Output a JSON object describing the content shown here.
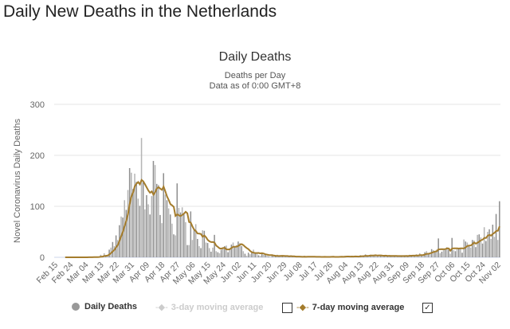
{
  "page_title": "Daily New Deaths in the Netherlands",
  "chart_data": {
    "type": "bar",
    "title": "Daily Deaths",
    "subtitle": [
      "Deaths per Day",
      "Data as of 0:00 GMT+8"
    ],
    "ylabel": "Novel Coronavirus Daily Deaths",
    "xlabel": "",
    "ylim": [
      0,
      300
    ],
    "yticks": [
      0,
      100,
      200,
      300
    ],
    "grid": true,
    "legend_position": "bottom",
    "start_date": "Feb 15",
    "xtick_labels": [
      "Feb 15",
      "Feb 24",
      "Mar 04",
      "Mar 13",
      "Mar 22",
      "Mar 31",
      "Apr 09",
      "Apr 18",
      "Apr 27",
      "May 06",
      "May 15",
      "May 24",
      "Jun 02",
      "Jun 11",
      "Jun 20",
      "Jun 29",
      "Jul 08",
      "Jul 17",
      "Jul 26",
      "Aug 04",
      "Aug 13",
      "Aug 22",
      "Aug 31",
      "Sep 09",
      "Sep 18",
      "Sep 27",
      "Oct 06",
      "Oct 15",
      "Oct 24",
      "Nov 02"
    ],
    "series": [
      {
        "name": "Daily Deaths",
        "color": "#999999",
        "values": [
          0,
          0,
          0,
          0,
          0,
          0,
          0,
          0,
          0,
          0,
          0,
          0,
          0,
          0,
          0,
          0,
          0,
          0,
          0,
          0,
          1,
          0,
          0,
          1,
          1,
          0,
          1,
          5,
          2,
          8,
          4,
          4,
          15,
          19,
          30,
          22,
          43,
          34,
          63,
          80,
          78,
          112,
          93,
          132,
          175,
          166,
          134,
          164,
          148,
          115,
          101,
          234,
          147,
          94,
          122,
          104,
          84,
          120,
          189,
          181,
          144,
          142,
          83,
          67,
          165,
          123,
          112,
          96,
          84,
          66,
          45,
          43,
          145,
          97,
          88,
          98,
          84,
          69,
          24,
          24,
          90,
          34,
          54,
          65,
          36,
          22,
          18,
          53,
          52,
          29,
          28,
          18,
          11,
          19,
          44,
          12,
          10,
          8,
          15,
          19,
          22,
          23,
          10,
          15,
          25,
          29,
          21,
          24,
          31,
          28,
          22,
          12,
          7,
          3,
          9,
          6,
          11,
          15,
          8,
          7,
          4,
          3,
          9,
          5,
          6,
          3,
          2,
          1,
          4,
          3,
          2,
          5,
          1,
          4,
          2,
          3,
          1,
          2,
          1,
          3,
          2,
          1,
          0,
          1,
          2,
          0,
          1,
          3,
          0,
          1,
          2,
          1,
          0,
          2,
          1,
          0,
          1,
          0,
          2,
          1,
          1,
          0,
          1,
          2,
          1,
          0,
          1,
          1,
          1,
          2,
          1,
          3,
          2,
          1,
          0,
          2,
          1,
          3,
          2,
          1,
          4,
          2,
          3,
          6,
          2,
          3,
          5,
          4,
          3,
          5,
          2,
          4,
          3,
          2,
          3,
          4,
          2,
          3,
          2,
          3,
          2,
          4,
          1,
          2,
          3,
          2,
          4,
          3,
          2,
          5,
          3,
          4,
          2,
          6,
          3,
          8,
          5,
          4,
          10,
          12,
          6,
          9,
          16,
          14,
          12,
          15,
          37,
          8,
          11,
          14,
          16,
          20,
          15,
          7,
          38,
          14,
          12,
          16,
          18,
          17,
          9,
          35,
          31,
          29,
          22,
          19,
          34,
          33,
          20,
          44,
          45,
          39,
          27,
          59,
          32,
          50,
          55,
          36,
          64,
          40,
          85,
          34,
          110
        ]
      },
      {
        "name": "3-day moving average",
        "color": "#cccccc",
        "visible": false
      },
      {
        "name": "7-day moving average",
        "color": "#a47c2c",
        "visible": true
      }
    ]
  }
}
